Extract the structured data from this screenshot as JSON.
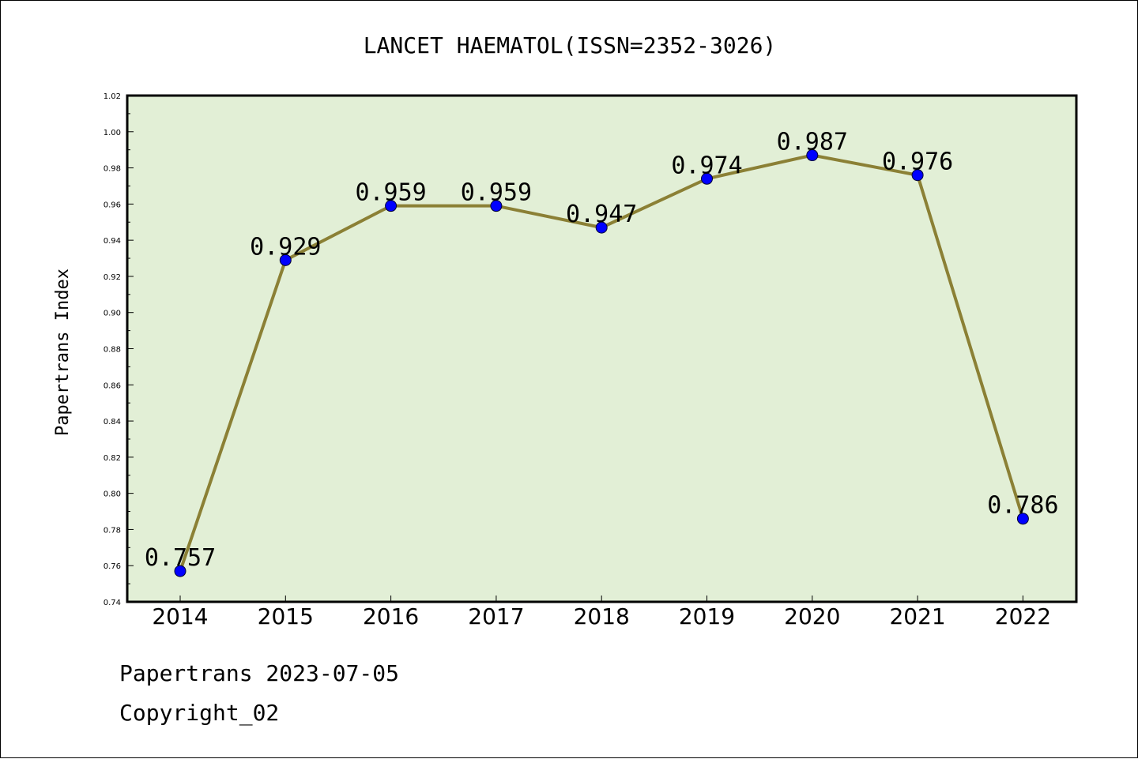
{
  "chart_data": {
    "type": "line",
    "title": "LANCET HAEMATOL(ISSN=2352-3026)",
    "xlabel": "",
    "ylabel": "Papertrans Index",
    "categories": [
      "2014",
      "2015",
      "2016",
      "2017",
      "2018",
      "2019",
      "2020",
      "2021",
      "2022"
    ],
    "values": [
      0.757,
      0.929,
      0.959,
      0.959,
      0.947,
      0.974,
      0.987,
      0.976,
      0.786
    ],
    "data_labels": [
      "0.757",
      "0.929",
      "0.959",
      "0.959",
      "0.947",
      "0.974",
      "0.987",
      "0.976",
      "0.786"
    ],
    "ylim": [
      0.74,
      1.02
    ],
    "yticks": [
      "0.74",
      "0.76",
      "0.78",
      "0.80",
      "0.82",
      "0.84",
      "0.86",
      "0.88",
      "0.90",
      "0.92",
      "0.94",
      "0.96",
      "0.98",
      "1.00",
      "1.02"
    ],
    "grid": false,
    "legend": "none",
    "colors": {
      "plot_background": "#e2efd6",
      "line": "#8b8035",
      "marker": "#0000ff"
    }
  },
  "footer": {
    "line1": "Papertrans 2023-07-05",
    "line2": "Copyright_02"
  }
}
